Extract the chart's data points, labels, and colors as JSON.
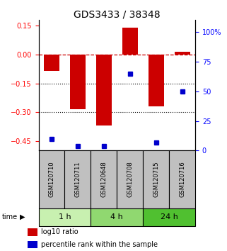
{
  "title": "GDS3433 / 38348",
  "samples": [
    "GSM120710",
    "GSM120711",
    "GSM120648",
    "GSM120708",
    "GSM120715",
    "GSM120716"
  ],
  "groups": [
    {
      "label": "1 h",
      "indices": [
        0,
        1
      ],
      "color": "#c8f0b0"
    },
    {
      "label": "4 h",
      "indices": [
        2,
        3
      ],
      "color": "#90d870"
    },
    {
      "label": "24 h",
      "indices": [
        4,
        5
      ],
      "color": "#50c030"
    }
  ],
  "log10_ratio": [
    -0.085,
    -0.285,
    -0.37,
    0.14,
    -0.27,
    0.015
  ],
  "percentile_rank": [
    10,
    4,
    4,
    65,
    7,
    50
  ],
  "ylim_left": [
    -0.5,
    0.18
  ],
  "ylim_right": [
    0,
    110
  ],
  "left_ticks": [
    0.15,
    0.0,
    -0.15,
    -0.3,
    -0.45
  ],
  "right_ticks": [
    100,
    75,
    50,
    25,
    0
  ],
  "bar_color": "#cc0000",
  "dot_color": "#0000cc",
  "dotted_lines": [
    -0.15,
    -0.3
  ],
  "plot_bg_color": "#ffffff",
  "legend_red_label": "log10 ratio",
  "legend_blue_label": "percentile rank within the sample",
  "sample_box_color": "#c0c0c0",
  "title_fontsize": 10,
  "tick_fontsize": 7,
  "sample_fontsize": 6,
  "group_fontsize": 8,
  "legend_fontsize": 7
}
